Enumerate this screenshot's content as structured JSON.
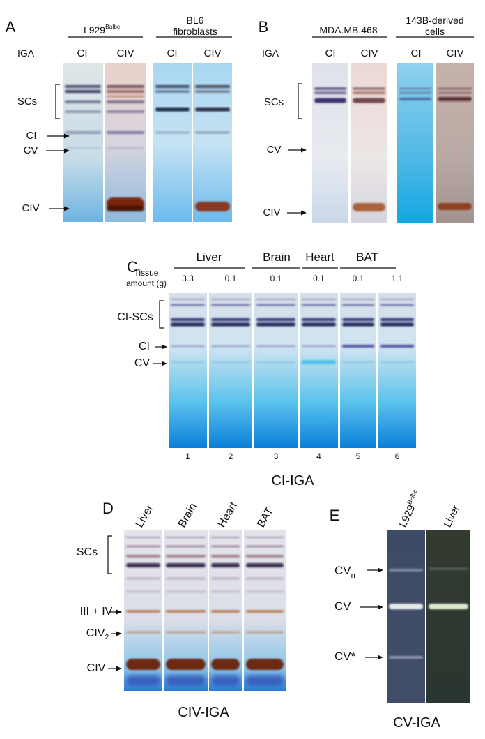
{
  "panel_a": {
    "letter": "A",
    "groups": [
      {
        "label": "L929",
        "superscript": "Balbc"
      },
      {
        "label_lines": [
          "BL6",
          "fibroblasts"
        ]
      }
    ],
    "row_label": "IGA",
    "lanes": [
      "CI",
      "CIV",
      "CI",
      "CIV"
    ],
    "bands": [
      "SCs",
      "CI",
      "CV",
      "CIV"
    ]
  },
  "panel_b": {
    "letter": "B",
    "groups": [
      {
        "label": "MDA.MB.468"
      },
      {
        "label_lines": [
          "143B-derived",
          "cells"
        ]
      }
    ],
    "row_label": "IGA",
    "lanes": [
      "CI",
      "CIV",
      "CI",
      "CIV"
    ],
    "bands": [
      "SCs",
      "CV",
      "CIV"
    ]
  },
  "panel_c": {
    "letter": "C",
    "groups": [
      "Liver",
      "Brain",
      "Heart",
      "BAT"
    ],
    "row_label_lines": [
      "Tissue",
      "amount (g)"
    ],
    "amounts": [
      "3.3",
      "0.1",
      "0.1",
      "0.1",
      "0.1",
      "1.1"
    ],
    "bands": [
      "CI-SCs",
      "CI",
      "CV"
    ],
    "lane_numbers": [
      "1",
      "2",
      "3",
      "4",
      "5",
      "6"
    ],
    "caption": "CI-IGA"
  },
  "panel_d": {
    "letter": "D",
    "lanes": [
      "Liver",
      "Brain",
      "Heart",
      "BAT"
    ],
    "bands": [
      {
        "label": "SCs"
      },
      {
        "label": "III + IV"
      },
      {
        "label": "CIV",
        "subscript": "2"
      },
      {
        "label": "CIV"
      }
    ],
    "caption": "CIV-IGA"
  },
  "panel_e": {
    "letter": "E",
    "lanes": [
      {
        "label": "L929",
        "superscript": "Balbc"
      },
      {
        "label": "Liver"
      }
    ],
    "bands": [
      {
        "label": "CV",
        "subscript": "n"
      },
      {
        "label": "CV"
      },
      {
        "label": "CV*"
      }
    ],
    "caption": "CV-IGA"
  }
}
